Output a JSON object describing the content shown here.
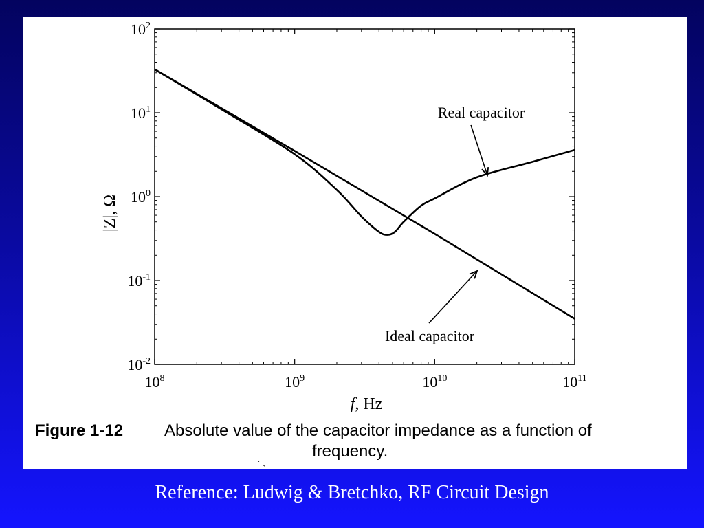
{
  "chart_data": {
    "type": "line",
    "xlabel_italic": "f",
    "xlabel_rest": ", Hz",
    "ylabel": "|Z|, Ω",
    "xscale": "log",
    "yscale": "log",
    "xlim": [
      100000000,
      100000000000
    ],
    "ylim": [
      0.01,
      100
    ],
    "x_ticks": [
      {
        "value": 100000000,
        "base": "10",
        "exp": "8"
      },
      {
        "value": 1000000000,
        "base": "10",
        "exp": "9"
      },
      {
        "value": 10000000000,
        "base": "10",
        "exp": "10"
      },
      {
        "value": 100000000000,
        "base": "10",
        "exp": "11"
      }
    ],
    "y_ticks": [
      {
        "value": 0.01,
        "base": "10",
        "exp": "-2"
      },
      {
        "value": 0.1,
        "base": "10",
        "exp": "-1"
      },
      {
        "value": 1,
        "base": "10",
        "exp": "0"
      },
      {
        "value": 10,
        "base": "10",
        "exp": "1"
      },
      {
        "value": 100,
        "base": "10",
        "exp": "2"
      }
    ],
    "grid": false,
    "series": [
      {
        "name": "Ideal capacitor",
        "x": [
          100000000,
          1000000000,
          10000000000,
          100000000000
        ],
        "values": [
          33,
          3.5,
          0.36,
          0.035
        ]
      },
      {
        "name": "Real capacitor",
        "x": [
          100000000,
          300000000,
          1000000000,
          2000000000,
          3000000000,
          4000000000,
          4600000000,
          5200000000,
          6000000000,
          8000000000,
          10000000000,
          20000000000,
          50000000000,
          100000000000
        ],
        "values": [
          33,
          11,
          3.2,
          1.2,
          0.58,
          0.38,
          0.35,
          0.38,
          0.5,
          0.78,
          0.95,
          1.7,
          2.6,
          3.6
        ]
      }
    ],
    "annotations": [
      {
        "text": "Real capacitor",
        "series": 1
      },
      {
        "text": "Ideal capacitor",
        "series": 0
      }
    ]
  },
  "caption": {
    "label": "Figure 1-12",
    "line1": "Absolute value of the capacitor impedance as a function of",
    "line2": "frequency."
  },
  "reference": "Reference: Ludwig & Bretchko, RF Circuit Design"
}
